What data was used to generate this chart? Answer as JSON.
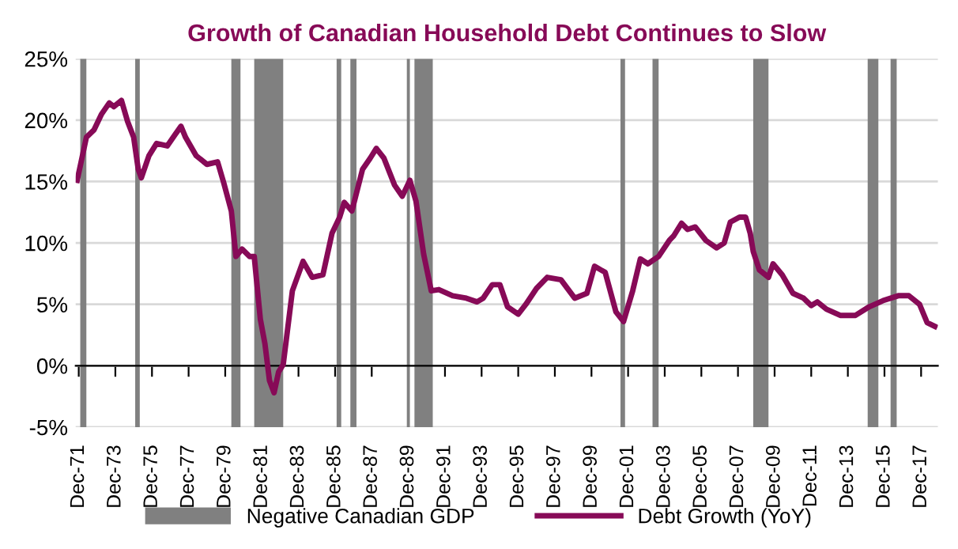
{
  "chart_data": {
    "type": "line",
    "title": "Growth of Canadian Household Debt Continues to Slow",
    "series": [
      {
        "name": "Debt Growth (YoY)",
        "color": "#870a57",
        "x": [
          "1971-11",
          "1972-05",
          "1972-10",
          "1973-03",
          "1973-08",
          "1973-11",
          "1974-04",
          "1974-08",
          "1974-12",
          "1975-03",
          "1975-05",
          "1975-10",
          "1976-03",
          "1976-10",
          "1977-03",
          "1977-07",
          "1977-10",
          "1978-05",
          "1978-12",
          "1979-07",
          "1979-11",
          "1980-04",
          "1980-07",
          "1980-11",
          "1981-04",
          "1981-07",
          "1981-11",
          "1982-02",
          "1982-05",
          "1982-08",
          "1982-11",
          "1983-02",
          "1983-08",
          "1984-03",
          "1984-09",
          "1985-04",
          "1985-10",
          "1986-03",
          "1986-06",
          "1986-11",
          "1987-06",
          "1987-11",
          "1988-03",
          "1988-08",
          "1989-03",
          "1989-08",
          "1990-01",
          "1990-05",
          "1990-10",
          "1991-03",
          "1991-08",
          "1992-05",
          "1993-02",
          "1993-09",
          "1994-01",
          "1994-07",
          "1994-12",
          "1995-05",
          "1995-12",
          "1996-05",
          "1996-12",
          "1997-07",
          "1998-04",
          "1999-01",
          "1999-09",
          "2000-02",
          "2000-09",
          "2001-04",
          "2001-09",
          "2002-03",
          "2002-08",
          "2003-01",
          "2003-08",
          "2004-03",
          "2004-06",
          "2004-11",
          "2005-03",
          "2005-08",
          "2006-03",
          "2006-10",
          "2007-03",
          "2007-07",
          "2008-01",
          "2008-05",
          "2008-08",
          "2008-10",
          "2009-02",
          "2009-08",
          "2009-11",
          "2010-05",
          "2010-12",
          "2011-07",
          "2011-12",
          "2012-04",
          "2012-10",
          "2013-07",
          "2014-05",
          "2015-02",
          "2015-11",
          "2016-09",
          "2017-04",
          "2017-11",
          "2018-04",
          "2018-09"
        ],
        "values": [
          15.1,
          18.6,
          19.2,
          20.5,
          21.4,
          21.1,
          21.6,
          19.9,
          18.6,
          16.0,
          15.3,
          17.1,
          18.1,
          17.9,
          18.8,
          19.5,
          18.6,
          17.1,
          16.4,
          16.6,
          14.9,
          12.6,
          8.9,
          9.5,
          8.9,
          8.9,
          3.8,
          1.8,
          -1.2,
          -2.2,
          -0.5,
          0.1,
          6.1,
          8.5,
          7.2,
          7.4,
          10.8,
          12.1,
          13.3,
          12.6,
          16.0,
          16.9,
          17.7,
          16.9,
          14.7,
          13.8,
          15.1,
          13.4,
          9.1,
          6.1,
          6.2,
          5.7,
          5.5,
          5.2,
          5.5,
          6.6,
          6.6,
          4.8,
          4.2,
          5.0,
          6.3,
          7.2,
          7.0,
          5.5,
          5.9,
          8.1,
          7.6,
          4.4,
          3.6,
          6.1,
          8.7,
          8.3,
          8.9,
          10.2,
          10.6,
          11.6,
          11.1,
          11.3,
          10.2,
          9.6,
          10.0,
          11.7,
          12.1,
          12.1,
          10.8,
          9.3,
          7.8,
          7.2,
          8.3,
          7.4,
          5.9,
          5.5,
          4.9,
          5.2,
          4.6,
          4.1,
          4.1,
          4.8,
          5.3,
          5.7,
          5.7,
          5.0,
          3.5,
          3.2
        ]
      }
    ],
    "bands": [
      {
        "axis": "x",
        "from": "1972-01",
        "to": "1972-05",
        "label": "Negative Canadian GDP",
        "color": "#808080"
      },
      {
        "axis": "x",
        "from": "1975-01",
        "to": "1975-04",
        "color": "#808080"
      },
      {
        "axis": "x",
        "from": "1980-04",
        "to": "1980-10",
        "color": "#808080"
      },
      {
        "axis": "x",
        "from": "1981-07",
        "to": "1983-02",
        "color": "#808080"
      },
      {
        "axis": "x",
        "from": "1986-01",
        "to": "1986-04",
        "color": "#808080"
      },
      {
        "axis": "x",
        "from": "1986-10",
        "to": "1987-02",
        "color": "#808080"
      },
      {
        "axis": "x",
        "from": "1989-11",
        "to": "1990-01",
        "color": "#808080"
      },
      {
        "axis": "x",
        "from": "1990-04",
        "to": "1991-04",
        "color": "#808080"
      },
      {
        "axis": "x",
        "from": "2001-07",
        "to": "2001-10",
        "color": "#808080"
      },
      {
        "axis": "x",
        "from": "2003-04",
        "to": "2003-08",
        "color": "#808080"
      },
      {
        "axis": "x",
        "from": "2008-10",
        "to": "2009-08",
        "color": "#808080"
      },
      {
        "axis": "x",
        "from": "2015-01",
        "to": "2015-08",
        "color": "#808080"
      },
      {
        "axis": "x",
        "from": "2016-04",
        "to": "2016-08",
        "color": "#808080"
      }
    ],
    "xlim": [
      "1971-10",
      "2018-11"
    ],
    "xticks": [
      {
        "value": "1971-12",
        "label": "Dec-71"
      },
      {
        "value": "1973-12",
        "label": "Dec-73"
      },
      {
        "value": "1975-12",
        "label": "Dec-75"
      },
      {
        "value": "1977-12",
        "label": "Dec-77"
      },
      {
        "value": "1979-12",
        "label": "Dec-79"
      },
      {
        "value": "1981-12",
        "label": "Dec-81"
      },
      {
        "value": "1983-12",
        "label": "Dec-83"
      },
      {
        "value": "1985-12",
        "label": "Dec-85"
      },
      {
        "value": "1987-12",
        "label": "Dec-87"
      },
      {
        "value": "1989-12",
        "label": "Dec-89"
      },
      {
        "value": "1991-12",
        "label": "Dec-91"
      },
      {
        "value": "1993-12",
        "label": "Dec-93"
      },
      {
        "value": "1995-12",
        "label": "Dec-95"
      },
      {
        "value": "1997-12",
        "label": "Dec-97"
      },
      {
        "value": "1999-12",
        "label": "Dec-99"
      },
      {
        "value": "2001-12",
        "label": "Dec-01"
      },
      {
        "value": "2003-12",
        "label": "Dec-03"
      },
      {
        "value": "2005-12",
        "label": "Dec-05"
      },
      {
        "value": "2007-12",
        "label": "Dec-07"
      },
      {
        "value": "2009-12",
        "label": "Dec-09"
      },
      {
        "value": "2011-12",
        "label": "Dec-11"
      },
      {
        "value": "2013-12",
        "label": "Dec-13"
      },
      {
        "value": "2015-12",
        "label": "Dec-15"
      },
      {
        "value": "2017-12",
        "label": "Dec-17"
      }
    ],
    "ylim": [
      -5,
      25
    ],
    "yticks": [
      {
        "value": -5,
        "label": "-5%"
      },
      {
        "value": 0,
        "label": "0%"
      },
      {
        "value": 5,
        "label": "5%"
      },
      {
        "value": 10,
        "label": "10%"
      },
      {
        "value": 15,
        "label": "15%"
      },
      {
        "value": 20,
        "label": "20%"
      },
      {
        "value": 25,
        "label": "25%"
      }
    ],
    "grid": "y",
    "legend": "bottom",
    "marker": "none",
    "line_style": "solid"
  }
}
